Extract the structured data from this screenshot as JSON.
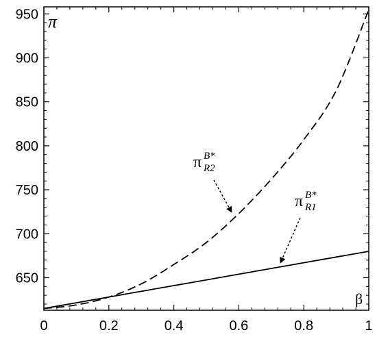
{
  "chart_data": {
    "type": "line",
    "title": "",
    "xlabel": "β",
    "ylabel": "π",
    "xlim": [
      0,
      1
    ],
    "ylim": [
      613,
      958
    ],
    "x_ticks": [
      0,
      0.2,
      0.4,
      0.6,
      0.8,
      1
    ],
    "x_tick_labels": [
      "0",
      "0.2",
      "0.4",
      "0.6",
      "0.8",
      "1"
    ],
    "y_ticks": [
      650,
      700,
      750,
      800,
      850,
      900,
      950
    ],
    "y_tick_labels": [
      "650",
      "700",
      "750",
      "800",
      "850",
      "900",
      "950"
    ],
    "grid": false,
    "legend": "none",
    "x": [
      0,
      0.1,
      0.2,
      0.3,
      0.4,
      0.5,
      0.6,
      0.7,
      0.8,
      0.9,
      1.0
    ],
    "series": [
      {
        "style": "dashed",
        "color": "#000000",
        "values": [
          615,
          619,
          628,
          643,
          665,
          690,
          723,
          762,
          807,
          863,
          955
        ]
      },
      {
        "style": "solid",
        "color": "#000000",
        "values": [
          615,
          621.5,
          628,
          634.5,
          641,
          647.5,
          654,
          660.5,
          667,
          673.5,
          680
        ]
      }
    ],
    "annotations": [
      {
        "main": "π",
        "sup": "B*",
        "sub": "R2",
        "points_to": [
          0.58,
          717
        ]
      },
      {
        "main": "π",
        "sup": "B*",
        "sub": "R1",
        "points_to": [
          0.73,
          662
        ]
      }
    ]
  }
}
